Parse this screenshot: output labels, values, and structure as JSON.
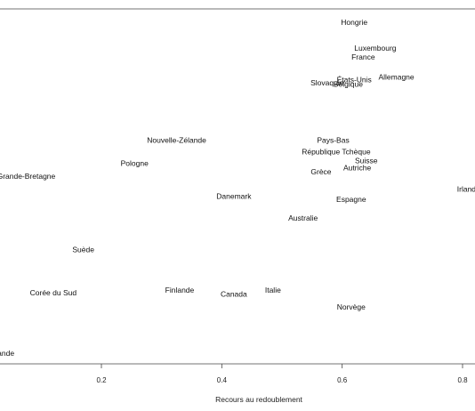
{
  "chart_data": {
    "type": "scatter",
    "title": "",
    "xlabel": "Recours au redoublement",
    "ylabel": "",
    "xlim": [
      0.0,
      0.82
    ],
    "xticks": [
      "0.2",
      "0.4",
      "0.6",
      "0.8"
    ],
    "xtick_values": [
      0.2,
      0.4,
      0.6,
      0.8
    ],
    "grid": false,
    "points": [
      {
        "label": "Hongrie",
        "x": 0.62,
        "y": 19
      },
      {
        "label": "Luxembourg",
        "x": 0.655,
        "y": 18.1
      },
      {
        "label": "France",
        "x": 0.635,
        "y": 17.8
      },
      {
        "label": "États-Unis",
        "x": 0.62,
        "y": 17.0
      },
      {
        "label": "Allemagne",
        "x": 0.69,
        "y": 17.1
      },
      {
        "label": "Slovaquie",
        "x": 0.575,
        "y": 16.9
      },
      {
        "label": "Belgique",
        "x": 0.61,
        "y": 16.85
      },
      {
        "label": "Nouvelle-Zélande",
        "x": 0.325,
        "y": 14.9
      },
      {
        "label": "Pays-Bas",
        "x": 0.585,
        "y": 14.9
      },
      {
        "label": "République Tchèque",
        "x": 0.59,
        "y": 14.5
      },
      {
        "label": "Suisse",
        "x": 0.64,
        "y": 14.2
      },
      {
        "label": "Pologne",
        "x": 0.255,
        "y": 14.1
      },
      {
        "label": "Autriche",
        "x": 0.625,
        "y": 13.95
      },
      {
        "label": "Grèce",
        "x": 0.565,
        "y": 13.8
      },
      {
        "label": "Grande-Bretagne",
        "x": 0.075,
        "y": 13.65
      },
      {
        "label": "Irlande",
        "x": 0.81,
        "y": 13.2
      },
      {
        "label": "Danemark",
        "x": 0.42,
        "y": 12.95
      },
      {
        "label": "Espagne",
        "x": 0.615,
        "y": 12.85
      },
      {
        "label": "Australie",
        "x": 0.535,
        "y": 12.2
      },
      {
        "label": "Suède",
        "x": 0.17,
        "y": 11.1
      },
      {
        "label": "Corée du Sud",
        "x": 0.12,
        "y": 9.6
      },
      {
        "label": "Finlande",
        "x": 0.33,
        "y": 9.7
      },
      {
        "label": "Italie",
        "x": 0.485,
        "y": 9.7
      },
      {
        "label": "Canada",
        "x": 0.42,
        "y": 9.55
      },
      {
        "label": "Norvège",
        "x": 0.615,
        "y": 9.1
      },
      {
        "label": "Islande",
        "x": 0.035,
        "y": 7.5
      }
    ]
  }
}
